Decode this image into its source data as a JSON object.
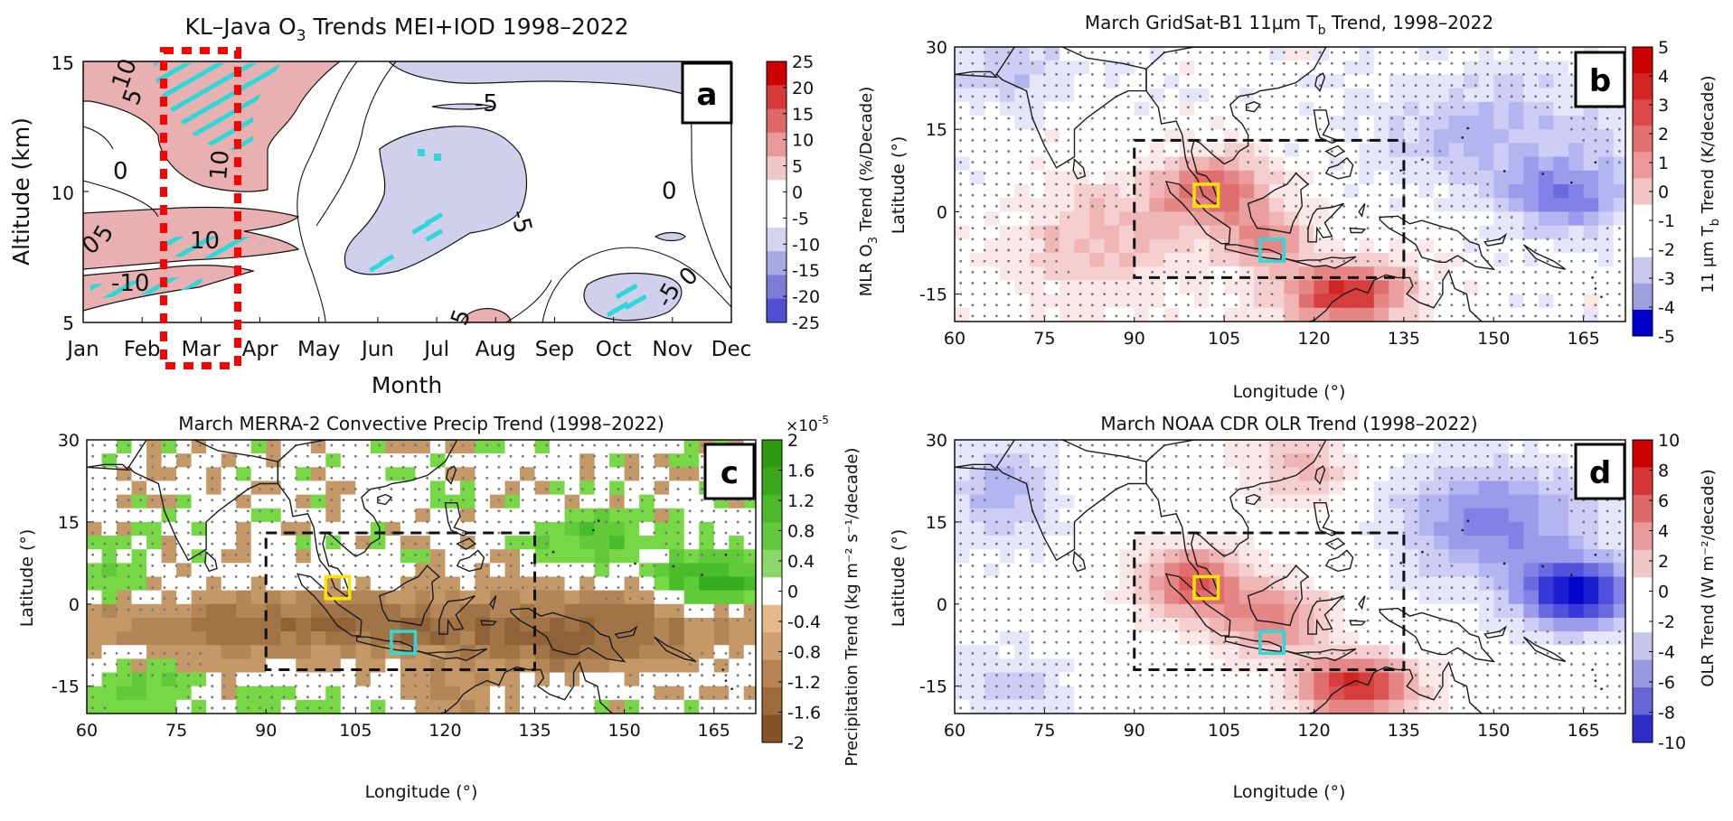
{
  "panels": {
    "a": {
      "letter": "a",
      "title": "KL–Java O",
      "title_sub": "3",
      "title_rest": " Trends MEI+IOD 1998–2022",
      "xlabel": "Month",
      "ylabel": "Altitude (km)",
      "xticks": [
        "Jan",
        "Feb",
        "Mar",
        "Apr",
        "May",
        "Jun",
        "Jul",
        "Aug",
        "Sep",
        "Oct",
        "Nov",
        "Dec"
      ],
      "yticks": [
        "15",
        "10",
        "5"
      ],
      "colorbar_label_pre": "MLR O",
      "colorbar_label_sub": "3",
      "colorbar_label_post": " Trend (%/Decade)",
      "colorbar_ticks": [
        "25",
        "20",
        "15",
        "10",
        "5",
        "0",
        "-5",
        "-10",
        "-15",
        "-20",
        "-25"
      ],
      "contour_labels": [
        "10",
        "5",
        "0",
        "10",
        "-5",
        "-5",
        "0",
        "0",
        "5",
        "-5",
        "0",
        "5",
        "10",
        "-10",
        "10",
        "10"
      ]
    },
    "b": {
      "letter": "b",
      "title_pre": "March GridSat-B1 11",
      "title_mu": "μ",
      "title_mid": "m T",
      "title_sub": "b",
      "title_post": " Trend, 1998–2022",
      "xlabel": "Longitude (°)",
      "ylabel": "Latitude (°)",
      "xticks": [
        "60",
        "75",
        "90",
        "105",
        "120",
        "135",
        "150",
        "165"
      ],
      "yticks": [
        "30",
        "15",
        "0",
        "-15"
      ],
      "colorbar_label": "11 μm T",
      "colorbar_label_sub": "b",
      "colorbar_label_post": " Trend (K/decade)",
      "colorbar_ticks": [
        "5",
        "4",
        "3",
        "2",
        "1",
        "0",
        "-1",
        "-2",
        "-3",
        "-4",
        "-5"
      ]
    },
    "c": {
      "letter": "c",
      "title": "March MERRA-2 Convective Precip Trend (1998–2022)",
      "xlabel": "Longitude (°)",
      "ylabel": "Latitude (°)",
      "xticks": [
        "60",
        "75",
        "90",
        "105",
        "120",
        "135",
        "150",
        "165"
      ],
      "yticks": [
        "30",
        "15",
        "0",
        "-15"
      ],
      "colorbar_multiplier": "×10",
      "colorbar_multiplier_exp": "-5",
      "colorbar_label": "Precipitation Trend (kg m⁻² s⁻¹/decade)",
      "colorbar_ticks": [
        "2",
        "1.6",
        "1.2",
        "0.8",
        "0.4",
        "0",
        "-0.4",
        "-0.8",
        "-1.2",
        "-1.6",
        "-2"
      ]
    },
    "d": {
      "letter": "d",
      "title": "March NOAA CDR OLR Trend (1998–2022)",
      "xlabel": "Longitude (°)",
      "ylabel": "Latitude (°)",
      "xticks": [
        "60",
        "75",
        "90",
        "105",
        "120",
        "135",
        "150",
        "165"
      ],
      "yticks": [
        "30",
        "15",
        "0",
        "-15"
      ],
      "colorbar_label": "OLR Trend (W m⁻²/decade)",
      "colorbar_ticks": [
        "10",
        "8",
        "6",
        "4",
        "2",
        "0",
        "-2",
        "-4",
        "-6",
        "-8",
        "-10"
      ]
    }
  },
  "colors": {
    "warm_strong": "#cc0000",
    "warm_light": "#e8b0b0",
    "cool_strong": "#0000cc",
    "cool_light": "#c8c8ea",
    "precip_wet": "#3fae1f",
    "precip_dry": "#8b5a2b",
    "highlight_yellow": "#ffe400",
    "highlight_cyan": "#2fd8d8",
    "month_box": "#ff0000"
  },
  "chart_data": [
    {
      "type": "heatmap",
      "panel": "a",
      "title": "KL–Java O3 Trends MEI+IOD 1998–2022",
      "xlabel": "Month",
      "ylabel": "Altitude (km)",
      "x": [
        "Jan",
        "Feb",
        "Mar",
        "Apr",
        "May",
        "Jun",
        "Jul",
        "Aug",
        "Sep",
        "Oct",
        "Nov",
        "Dec"
      ],
      "ylim": [
        5,
        15
      ],
      "clim": [
        -25,
        25
      ],
      "highlight_month": "Mar",
      "regions": [
        {
          "months": [
            "Jan",
            "Feb",
            "Mar"
          ],
          "altitude_km": [
            13,
            15
          ],
          "trend_pct_per_decade": 10
        },
        {
          "months": [
            "Jan",
            "Feb",
            "Mar"
          ],
          "altitude_km": [
            5.5,
            8.5
          ],
          "trend_pct_per_decade": 10
        },
        {
          "months": [
            "May",
            "Jun",
            "Jul"
          ],
          "altitude_km": [
            9,
            13
          ],
          "trend_pct_per_decade": -5
        },
        {
          "months": [
            "Oct",
            "Nov"
          ],
          "altitude_km": [
            5,
            7
          ],
          "trend_pct_per_decade": -5
        },
        {
          "months": [
            "Aug"
          ],
          "altitude_km": [
            5,
            5.5
          ],
          "trend_pct_per_decade": 5
        }
      ]
    },
    {
      "type": "heatmap",
      "panel": "b",
      "title": "March GridSat-B1 11μm Tb Trend, 1998–2022",
      "xlabel": "Longitude (°)",
      "ylabel": "Latitude (°)",
      "xlim": [
        60,
        172
      ],
      "ylim": [
        -20,
        30
      ],
      "clim": [
        -5,
        5
      ],
      "units": "K/decade",
      "pattern": "warming over Maritime Continent and northern Australia (up to 5), cooling over western Pacific (down to -3)"
    },
    {
      "type": "heatmap",
      "panel": "c",
      "title": "March MERRA-2 Convective Precip Trend (1998–2022)",
      "xlabel": "Longitude (°)",
      "ylabel": "Latitude (°)",
      "xlim": [
        60,
        172
      ],
      "ylim": [
        -20,
        30
      ],
      "clim": [
        -2e-05,
        2e-05
      ],
      "units": "kg m-2 s-1/decade",
      "pattern": "drying over equatorial Indian Ocean and Maritime Continent, wetting over western Pacific and southern Indian Ocean"
    },
    {
      "type": "heatmap",
      "panel": "d",
      "title": "March NOAA CDR OLR Trend (1998–2022)",
      "xlabel": "Longitude (°)",
      "ylabel": "Latitude (°)",
      "xlim": [
        60,
        172
      ],
      "ylim": [
        -20,
        30
      ],
      "clim": [
        -10,
        10
      ],
      "units": "W m-2/decade",
      "pattern": "increase over Maritime Continent and northern Australia (up to 10), decrease over western Pacific (down to -10)"
    }
  ],
  "map_boxes": {
    "domain_lon": [
      90,
      135
    ],
    "domain_lat": [
      -12,
      13
    ],
    "kl_box_lon": [
      100,
      104
    ],
    "kl_box_lat": [
      1,
      5
    ],
    "java_box_lon": [
      111,
      115
    ],
    "java_box_lat": [
      -9,
      -5
    ]
  }
}
